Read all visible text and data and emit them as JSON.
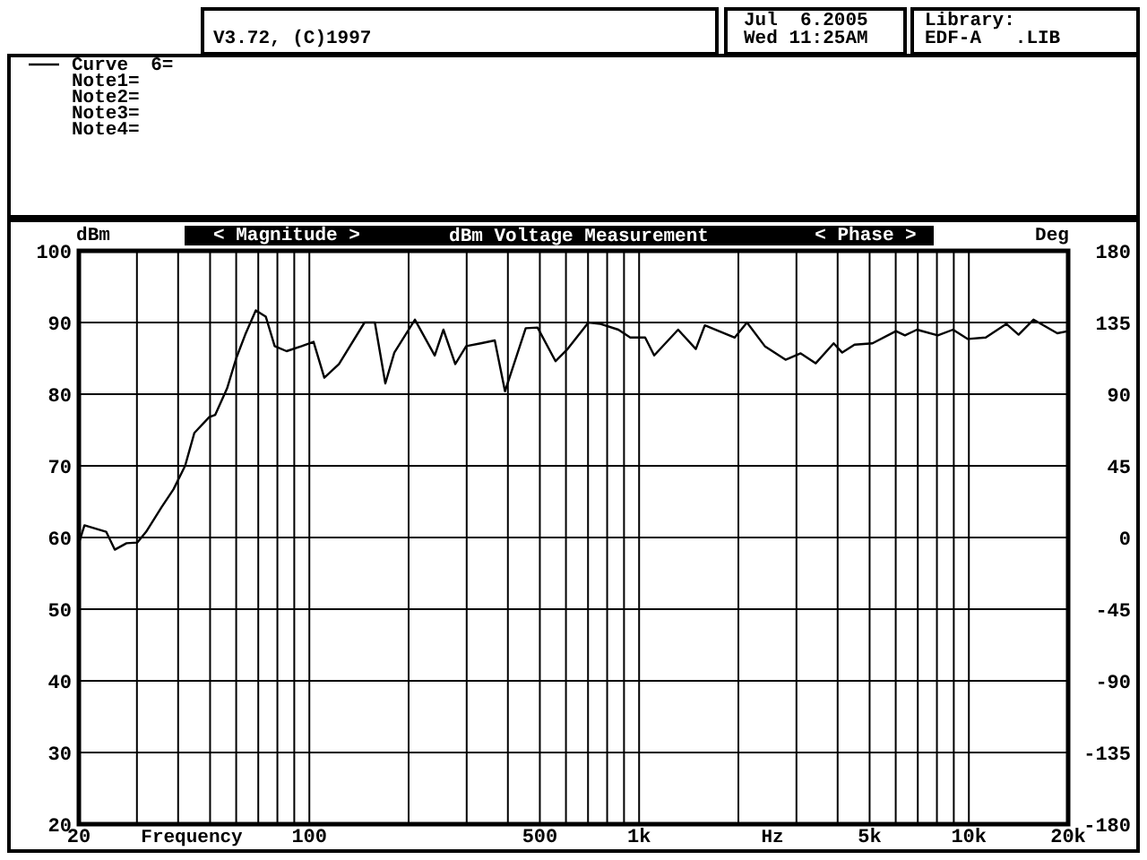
{
  "chart_data": {
    "type": "line",
    "title": "dBm Voltage Measurement",
    "xlabel": "Frequency",
    "ylabel": "dBm",
    "y2label": "Deg",
    "annotations": [
      "V3.72, (C)1997",
      "Jul  6.2005",
      "Wed 11:25AM",
      "Library:",
      "EDF-A   .LIB",
      "Note1=",
      "Note2=",
      "Note3=",
      "Note4=",
      "< Magnitude >",
      "< Phase >",
      "Hz"
    ],
    "log": "x",
    "grid": true,
    "legend": "top left",
    "line_style": "solid",
    "xlim": [
      20,
      20000
    ],
    "xticks": [
      20,
      100,
      500,
      {
        "value": 1000,
        "label": "1k"
      },
      {
        "value": 5000,
        "label": "5k"
      },
      {
        "value": 10000,
        "label": "10k"
      },
      {
        "value": 20000,
        "label": "20k"
      }
    ],
    "ylim": [
      20,
      100
    ],
    "yticks": [
      20,
      30,
      40,
      50,
      60,
      70,
      80,
      90,
      100
    ],
    "y2lim": [
      -180,
      180
    ],
    "y2ticks": [
      -180,
      -135,
      -90,
      -45,
      0,
      45,
      90,
      135,
      180
    ],
    "series": [
      {
        "name": "Curve  6=",
        "color": "#000000",
        "x": [
          20,
          20.8,
          24.2,
          25.7,
          27.9,
          30.1,
          32,
          35.6,
          38.7,
          42,
          44.8,
          49.7,
          51.8,
          56.3,
          60,
          63.9,
          68.8,
          73.8,
          78.5,
          85.3,
          94.8,
          103,
          111,
          123,
          147,
          158,
          170,
          181,
          209,
          240,
          255,
          277,
          299,
          331,
          365,
          392,
          453,
          492,
          558,
          607,
          702,
          764,
          865,
          940,
          1043,
          1111,
          1313,
          1486,
          1582,
          1950,
          2124,
          2405,
          2780,
          3090,
          3430,
          3890,
          4130,
          4500,
          5100,
          6010,
          6400,
          6960,
          8050,
          8950,
          9930,
          11250,
          13000,
          14150,
          15700,
          18540,
          20000
        ],
        "values": [
          59.2,
          61.7,
          60.8,
          58.3,
          59.2,
          59.3,
          60.8,
          64.2,
          66.7,
          70,
          74.6,
          76.8,
          77.1,
          80.8,
          85,
          88.3,
          91.7,
          90.8,
          86.7,
          86,
          86.7,
          87.3,
          82.3,
          84.2,
          90,
          90,
          81.5,
          85.8,
          90.4,
          85.4,
          89,
          84.2,
          86.7,
          87.1,
          87.5,
          80.4,
          89.2,
          89.3,
          84.6,
          86.3,
          90,
          89.8,
          89,
          87.9,
          87.9,
          85.4,
          89,
          86.3,
          89.6,
          87.9,
          90,
          86.7,
          84.8,
          85.7,
          84.3,
          87.1,
          85.8,
          86.9,
          87.1,
          88.8,
          88.2,
          89,
          88.2,
          89,
          87.7,
          87.9,
          89.8,
          88.3,
          90.4,
          88.5,
          88.8
        ]
      }
    ]
  }
}
